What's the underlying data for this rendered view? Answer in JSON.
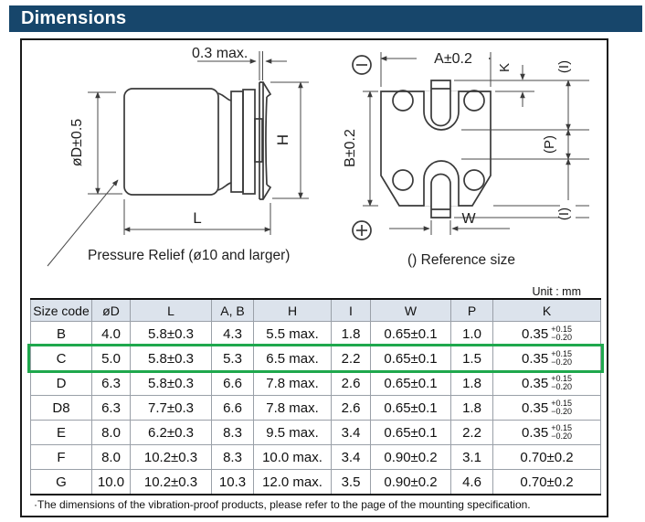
{
  "page": {
    "title": "Dimensions",
    "unit_label": "Unit : mm"
  },
  "drawing": {
    "side_view": {
      "dim_lead_thickness": "0.3 max.",
      "dim_diameter": "øD±0.5",
      "dim_height": "H",
      "dim_length": "L",
      "pressure_relief_note": "Pressure Relief (ø10 and larger)"
    },
    "bottom_view": {
      "dim_a": "A±0.2",
      "dim_b": "B±0.2",
      "dim_k": "K",
      "dim_i_top": "(I)",
      "dim_p": "(P)",
      "dim_i_bottom": "(I)",
      "dim_w": "W",
      "reference_note": "() Reference size"
    }
  },
  "table": {
    "headers": [
      "Size code",
      "øD",
      "L",
      "A, B",
      "H",
      "I",
      "W",
      "P",
      "K"
    ],
    "rows": [
      {
        "size_code": "B",
        "d": "4.0",
        "l": "5.8±0.3",
        "ab": "4.3",
        "h": "5.5 max.",
        "i": "1.8",
        "w": "0.65±0.1",
        "p": "1.0",
        "k": "0.35",
        "k_tol_plus": "+0.15",
        "k_tol_minus": "−0.20",
        "highlight": false
      },
      {
        "size_code": "C",
        "d": "5.0",
        "l": "5.8±0.3",
        "ab": "5.3",
        "h": "6.5 max.",
        "i": "2.2",
        "w": "0.65±0.1",
        "p": "1.5",
        "k": "0.35",
        "k_tol_plus": "+0.15",
        "k_tol_minus": "−0.20",
        "highlight": true
      },
      {
        "size_code": "D",
        "d": "6.3",
        "l": "5.8±0.3",
        "ab": "6.6",
        "h": "7.8 max.",
        "i": "2.6",
        "w": "0.65±0.1",
        "p": "1.8",
        "k": "0.35",
        "k_tol_plus": "+0.15",
        "k_tol_minus": "−0.20",
        "highlight": false
      },
      {
        "size_code": "D8",
        "d": "6.3",
        "l": "7.7±0.3",
        "ab": "6.6",
        "h": "7.8 max.",
        "i": "2.6",
        "w": "0.65±0.1",
        "p": "1.8",
        "k": "0.35",
        "k_tol_plus": "+0.15",
        "k_tol_minus": "−0.20",
        "highlight": false
      },
      {
        "size_code": "E",
        "d": "8.0",
        "l": "6.2±0.3",
        "ab": "8.3",
        "h": "9.5 max.",
        "i": "3.4",
        "w": "0.65±0.1",
        "p": "2.2",
        "k": "0.35",
        "k_tol_plus": "+0.15",
        "k_tol_minus": "−0.20",
        "highlight": false
      },
      {
        "size_code": "F",
        "d": "8.0",
        "l": "10.2±0.3",
        "ab": "8.3",
        "h": "10.0 max.",
        "i": "3.4",
        "w": "0.90±0.2",
        "p": "3.1",
        "k": "0.70±0.2",
        "k_tol_plus": null,
        "k_tol_minus": null,
        "highlight": false
      },
      {
        "size_code": "G",
        "d": "10.0",
        "l": "10.2±0.3",
        "ab": "10.3",
        "h": "12.0 max.",
        "i": "3.5",
        "w": "0.90±0.2",
        "p": "4.6",
        "k": "0.70±0.2",
        "k_tol_plus": null,
        "k_tol_minus": null,
        "highlight": false
      }
    ],
    "footnote": "·The dimensions of the vibration-proof products, please refer to the page of the mounting specification.",
    "highlight_color": "#1fa84d"
  },
  "colors": {
    "title_bg": "#17466b",
    "table_header_bg": "#dce3ec",
    "highlight": "#1fa84d"
  }
}
